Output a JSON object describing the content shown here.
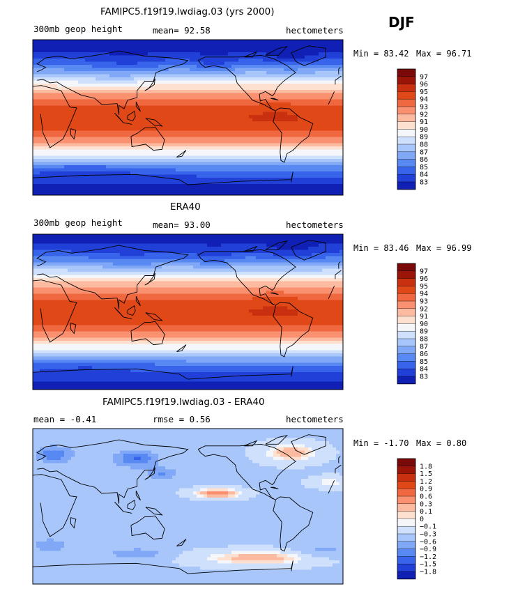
{
  "season": "DJF",
  "colors": {
    "full": [
      "#0a0a7a",
      "#1020b4",
      "#2040d8",
      "#3864ec",
      "#5888f2",
      "#80a8f6",
      "#a8c6fa",
      "#cfe0fc",
      "#f4f6fa",
      "#fde0d0",
      "#fcbba0",
      "#f99070",
      "#f06840",
      "#e04818",
      "#c83010",
      "#9a1408",
      "#7a0a0a"
    ],
    "diff": [
      "#0a0a7a",
      "#1020b4",
      "#2040d8",
      "#3864ec",
      "#5888f2",
      "#80a8f6",
      "#a8c6fa",
      "#cfe0fc",
      "#f4f6fa",
      "#fde0d0",
      "#fcbba0",
      "#f99070",
      "#f06840",
      "#e04818",
      "#c83010",
      "#9a1408",
      "#7a0a0a"
    ]
  },
  "chart_data": [
    {
      "type": "heatmap",
      "title": "FAMIPC5.f19f19.lwdiag.03 (yrs 2000)",
      "left_label": "300mb geop height",
      "stat_text": "mean=   92.58",
      "units": "hectometers",
      "min_text": "Min =  83.42",
      "max_text": "Max =  96.71",
      "min": 83.42,
      "max": 96.71,
      "mean": 92.58,
      "colorbar_ticks": [
        "97",
        "96",
        "95",
        "94",
        "93",
        "92",
        "91",
        "90",
        "89",
        "88",
        "87",
        "86",
        "85",
        "84",
        "83"
      ]
    },
    {
      "type": "heatmap",
      "title": "ERA40",
      "left_label": "300mb geop height",
      "stat_text": "mean=   93.00",
      "units": "hectometers",
      "min_text": "Min =  83.46",
      "max_text": "Max =  96.99",
      "min": 83.46,
      "max": 96.99,
      "mean": 93.0,
      "colorbar_ticks": [
        "97",
        "96",
        "95",
        "94",
        "93",
        "92",
        "91",
        "90",
        "89",
        "88",
        "87",
        "86",
        "85",
        "84",
        "83"
      ]
    },
    {
      "type": "heatmap",
      "title": "FAMIPC5.f19f19.lwdiag.03 - ERA40",
      "left_label": "mean =  -0.41",
      "stat_text": "rmse =    0.56",
      "units": "hectometers",
      "min_text": "Min =  -1.70",
      "max_text": "Max =   0.80",
      "min": -1.7,
      "max": 0.8,
      "mean": -0.41,
      "rmse": 0.56,
      "colorbar_ticks": [
        "1.8",
        "1.5",
        "1.2",
        "0.9",
        "0.6",
        "0.3",
        "0.1",
        "0",
        "-0.1",
        "-0.3",
        "-0.6",
        "-0.9",
        "-1.2",
        "-1.5",
        "-1.8"
      ]
    }
  ]
}
